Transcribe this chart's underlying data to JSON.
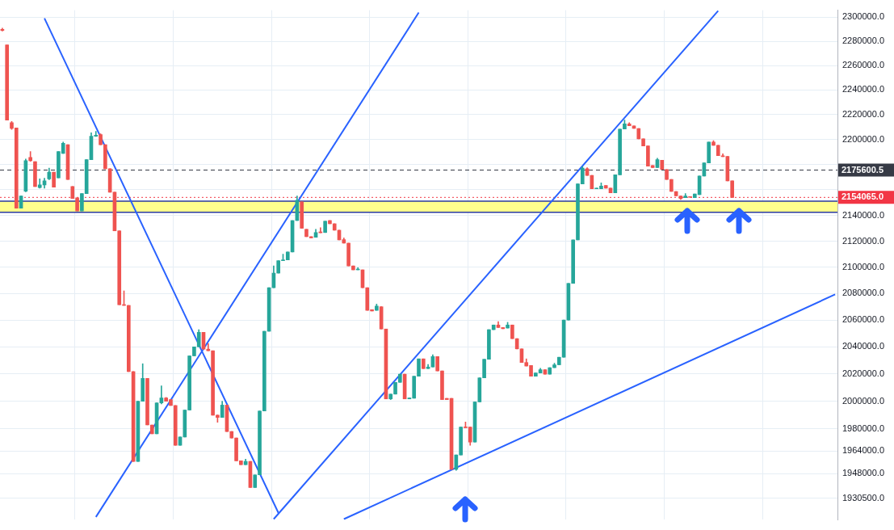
{
  "chart_data": {
    "type": "candlestick",
    "log": "y",
    "grid": true,
    "tick_labels": "y",
    "categories": [
      null,
      null,
      null,
      null,
      null,
      null,
      null,
      null,
      null,
      null,
      null,
      null,
      null,
      null,
      null,
      null,
      null,
      null,
      null,
      null,
      null,
      null,
      null,
      null,
      null,
      null,
      null,
      null,
      null,
      null,
      null,
      null,
      null,
      null,
      null,
      null,
      null,
      null,
      null,
      null,
      null,
      null,
      null,
      null,
      null,
      null,
      null,
      null,
      null,
      null,
      null,
      null,
      null,
      null,
      null,
      null,
      null,
      null,
      null,
      null,
      null,
      null,
      null,
      null,
      null,
      null,
      null,
      null,
      null,
      null,
      null,
      null,
      null,
      null,
      null,
      null,
      null,
      null,
      null,
      null,
      null,
      null,
      null,
      null,
      null,
      null,
      null,
      null,
      null,
      null,
      null,
      null,
      null,
      null,
      null,
      null,
      null,
      null,
      null,
      null,
      null,
      null,
      null,
      null,
      null,
      null,
      null,
      null,
      null,
      null,
      null,
      null,
      null,
      null,
      null,
      null,
      null,
      null,
      null,
      null,
      null,
      null,
      null,
      null,
      null,
      null,
      null,
      null,
      null,
      null,
      null,
      null,
      null,
      null,
      null,
      null,
      null,
      null,
      null,
      null,
      null,
      null,
      null,
      null,
      null,
      null,
      null,
      null,
      null,
      null,
      null,
      null,
      null,
      null,
      null,
      null,
      null,
      null,
      null,
      null,
      null,
      null,
      null,
      null,
      null,
      null,
      null,
      null,
      null,
      null,
      null,
      null,
      null,
      null,
      null,
      null,
      null,
      null,
      null
    ],
    "ylim": [
      1915500,
      2306000
    ],
    "yticks": [
      {
        "value": 2300000,
        "label": "2300000.0"
      },
      {
        "value": 2280000,
        "label": "2280000.0"
      },
      {
        "value": 2260000,
        "label": "2260000.0"
      },
      {
        "value": 2240000,
        "label": "2240000.0"
      },
      {
        "value": 2220000,
        "label": "2220000.0"
      },
      {
        "value": 2200000,
        "label": "2200000.0"
      },
      {
        "value": 2180000,
        "label": null
      },
      {
        "value": 2160000,
        "label": null
      },
      {
        "value": 2140000,
        "label": "2140000.0"
      },
      {
        "value": 2120000,
        "label": "2120000.0"
      },
      {
        "value": 2100000,
        "label": "2100000.0"
      },
      {
        "value": 2080000,
        "label": "2080000.0"
      },
      {
        "value": 2060000,
        "label": "2060000.0"
      },
      {
        "value": 2040000,
        "label": "2040000.0"
      },
      {
        "value": 2020000,
        "label": "2020000.0"
      },
      {
        "value": 2000000,
        "label": "2000000.0"
      },
      {
        "value": 1980000,
        "label": "1980000.0"
      },
      {
        "value": 1964000,
        "label": "1964000.0"
      },
      {
        "value": 1948000,
        "label": "1948000.0"
      },
      {
        "value": 1930500,
        "label": "1930500.0"
      }
    ],
    "ohlc": [
      [
        2290000,
        2291000,
        2288500,
        2289000
      ],
      [
        2277000,
        2277000,
        2215600,
        2215600
      ],
      [
        2213500,
        2214500,
        2208000,
        2208800
      ],
      [
        2209300,
        2209300,
        2145600,
        2145600
      ],
      [
        2145600,
        2155200,
        2145600,
        2155200
      ],
      [
        2159000,
        2184400,
        2158500,
        2183100
      ],
      [
        2185700,
        2190400,
        2182500,
        2183100
      ],
      [
        2182300,
        2182300,
        2162600,
        2162600
      ],
      [
        2161800,
        2168700,
        2161300,
        2163900
      ],
      [
        2163900,
        2169200,
        2161300,
        2167100
      ],
      [
        2168700,
        2177100,
        2168000,
        2173900
      ],
      [
        2173900,
        2173900,
        2162100,
        2162100
      ],
      [
        2169500,
        2190400,
        2169500,
        2190400
      ],
      [
        2188800,
        2197900,
        2188800,
        2196900
      ],
      [
        2195800,
        2195800,
        2168200,
        2168200
      ],
      [
        2162600,
        2162600,
        2153200,
        2153200
      ],
      [
        2153700,
        2153700,
        2143500,
        2143500
      ],
      [
        2143500,
        2157000,
        2143500,
        2157000
      ],
      [
        2157000,
        2183900,
        2157000,
        2183900
      ],
      [
        2183900,
        2205300,
        2183900,
        2202600
      ],
      [
        2202600,
        2206500,
        2202300,
        2203400
      ],
      [
        2203900,
        2204500,
        2195800,
        2195800
      ],
      [
        2195800,
        2195800,
        2176600,
        2176600
      ],
      [
        2176600,
        2176600,
        2158200,
        2158200
      ],
      [
        2158200,
        2158200,
        2128000,
        2128000
      ],
      [
        2128000,
        2128000,
        2071500,
        2071500
      ],
      [
        2071500,
        2082000,
        2071000,
        2071000
      ],
      [
        2071000,
        2071000,
        2021700,
        2021700
      ],
      [
        2021700,
        2021700,
        1956700,
        1956700
      ],
      [
        1956700,
        2000000,
        1956700,
        2000000
      ],
      [
        2000000,
        2027500,
        2000000,
        2016700
      ],
      [
        2016700,
        2016700,
        1982800,
        1982800
      ],
      [
        1982800,
        1982800,
        1976500,
        1976500
      ],
      [
        1976500,
        1998800,
        1976500,
        1998800
      ],
      [
        1998800,
        2011200,
        1998000,
        2002400
      ],
      [
        2002400,
        2002800,
        2000000,
        2000000
      ],
      [
        2001200,
        2001200,
        1996900,
        1996900
      ],
      [
        1996900,
        1996900,
        1968200,
        1968200
      ],
      [
        1968200,
        1974100,
        1968200,
        1974100
      ],
      [
        1974100,
        1993600,
        1974100,
        1993600
      ],
      [
        1993600,
        2033300,
        1993600,
        2033300
      ],
      [
        2033300,
        2040000,
        2033300,
        2040000
      ],
      [
        2040000,
        2052800,
        2040000,
        2050800
      ],
      [
        2050800,
        2050800,
        2038300,
        2038300
      ],
      [
        2038300,
        2042400,
        2037100,
        2037100
      ],
      [
        2037100,
        2037100,
        1989900,
        1989900
      ],
      [
        1989900,
        1990000,
        1984700,
        1988200
      ],
      [
        1988200,
        2000000,
        1988200,
        1997200
      ],
      [
        1997200,
        1997200,
        1978100,
        1978100
      ],
      [
        1978100,
        1978100,
        1973400,
        1973400
      ],
      [
        1973400,
        1973400,
        1957100,
        1957100
      ],
      [
        1957100,
        1957100,
        1954400,
        1954400
      ],
      [
        1954400,
        1958300,
        1954400,
        1956700
      ],
      [
        1956700,
        1956700,
        1938200,
        1938200
      ],
      [
        1938200,
        1947100,
        1938200,
        1947100
      ],
      [
        1947100,
        1992900,
        1947100,
        1992900
      ],
      [
        1992900,
        2051600,
        1992900,
        2051600
      ],
      [
        2051600,
        2084400,
        2051600,
        2084400
      ],
      [
        2084400,
        2101000,
        2084400,
        2095500
      ],
      [
        2095500,
        2105000,
        2095500,
        2105000
      ],
      [
        2105000,
        2110000,
        2105000,
        2105600
      ],
      [
        2105600,
        2111700,
        2105600,
        2111700
      ],
      [
        2111700,
        2136000,
        2111700,
        2136000
      ],
      [
        2136000,
        2155200,
        2136000,
        2151900
      ],
      [
        2150600,
        2150600,
        2130000,
        2130000
      ],
      [
        2129200,
        2129200,
        2123500,
        2123500
      ],
      [
        2123500,
        2123500,
        2122500,
        2122500
      ],
      [
        2123000,
        2129200,
        2123000,
        2126700
      ],
      [
        2127200,
        2130500,
        2126500,
        2126500
      ],
      [
        2126700,
        2135500,
        2126700,
        2135500
      ],
      [
        2136000,
        2136000,
        2133500,
        2133500
      ],
      [
        2133500,
        2133500,
        2128500,
        2128500
      ],
      [
        2128500,
        2128500,
        2121000,
        2121000
      ],
      [
        2121200,
        2122500,
        2118500,
        2118500
      ],
      [
        2118500,
        2118500,
        2101000,
        2101000
      ],
      [
        2101000,
        2101000,
        2098000,
        2098000
      ],
      [
        2098000,
        2099700,
        2098000,
        2098500
      ],
      [
        2098000,
        2098000,
        2084400,
        2084400
      ],
      [
        2084400,
        2084400,
        2067300,
        2067300
      ],
      [
        2067800,
        2067800,
        2066800,
        2066800
      ],
      [
        2067300,
        2072000,
        2067300,
        2070500
      ],
      [
        2070000,
        2070000,
        2053300,
        2053300
      ],
      [
        2053300,
        2053300,
        2001700,
        2001700
      ],
      [
        2001700,
        2005200,
        2001200,
        2005200
      ],
      [
        2005200,
        2013800,
        2005200,
        2013800
      ],
      [
        2013800,
        2019800,
        2013800,
        2019800
      ],
      [
        2019800,
        2019800,
        2001700,
        2001700
      ],
      [
        2001700,
        2002400,
        2001700,
        2002400
      ],
      [
        2002200,
        2018300,
        2002200,
        2018300
      ],
      [
        2018300,
        2031100,
        2018300,
        2031100
      ],
      [
        2031100,
        2031100,
        2023900,
        2023900
      ],
      [
        2023900,
        2027000,
        2023900,
        2025100
      ],
      [
        2025100,
        2034200,
        2025100,
        2032800
      ],
      [
        2032800,
        2032800,
        2022200,
        2022200
      ],
      [
        2022200,
        2022200,
        2001200,
        2001200
      ],
      [
        2002100,
        2002100,
        2001200,
        2001200
      ],
      [
        2002100,
        2002100,
        1951000,
        1951000
      ],
      [
        1951000,
        1961300,
        1950300,
        1961300
      ],
      [
        1961300,
        1981300,
        1961300,
        1981300
      ],
      [
        1981300,
        1985000,
        1980800,
        1980800
      ],
      [
        1981300,
        1981300,
        1968200,
        1970500
      ],
      [
        1970500,
        1999500,
        1970500,
        1999500
      ],
      [
        1999500,
        2017100,
        1999500,
        2017100
      ],
      [
        2017100,
        2030800,
        2017100,
        2030800
      ],
      [
        2030800,
        2052800,
        2030800,
        2052800
      ],
      [
        2052800,
        2056300,
        2052800,
        2056300
      ],
      [
        2056300,
        2058800,
        2054400,
        2054400
      ],
      [
        2054400,
        2054400,
        2053500,
        2053500
      ],
      [
        2054000,
        2058300,
        2054000,
        2056300
      ],
      [
        2056300,
        2056300,
        2046100,
        2046100
      ],
      [
        2046100,
        2046100,
        2038500,
        2038500
      ],
      [
        2038500,
        2038500,
        2028400,
        2028400
      ],
      [
        2028400,
        2031100,
        2025800,
        2025800
      ],
      [
        2026200,
        2026200,
        2018300,
        2018300
      ],
      [
        2018300,
        2020700,
        2018300,
        2020700
      ],
      [
        2020700,
        2024100,
        2020700,
        2023100
      ],
      [
        2023100,
        2023100,
        2019800,
        2019800
      ],
      [
        2019800,
        2024600,
        2019800,
        2024600
      ],
      [
        2024600,
        2027900,
        2024600,
        2026700
      ],
      [
        2026700,
        2032300,
        2026700,
        2032300
      ],
      [
        2032300,
        2060000,
        2032300,
        2060000
      ],
      [
        2060000,
        2087700,
        2060000,
        2087700
      ],
      [
        2087700,
        2121000,
        2087700,
        2121000
      ],
      [
        2121000,
        2164700,
        2121000,
        2164700
      ],
      [
        2164700,
        2178500,
        2164700,
        2177100
      ],
      [
        2176600,
        2177500,
        2171400,
        2171400
      ],
      [
        2171400,
        2171400,
        2160800,
        2160800
      ],
      [
        2160800,
        2161300,
        2160800,
        2161300
      ],
      [
        2160800,
        2165500,
        2160800,
        2162900
      ],
      [
        2163400,
        2163400,
        2161300,
        2161300
      ],
      [
        2161300,
        2161300,
        2157700,
        2157700
      ],
      [
        2157700,
        2171800,
        2157700,
        2171800
      ],
      [
        2171800,
        2208300,
        2171800,
        2208300
      ],
      [
        2208300,
        2215600,
        2208300,
        2212500
      ],
      [
        2212500,
        2213500,
        2210900,
        2210900
      ],
      [
        2210900,
        2210900,
        2208800,
        2208800
      ],
      [
        2208800,
        2208800,
        2200500,
        2200500
      ],
      [
        2200500,
        2200500,
        2194800,
        2194800
      ],
      [
        2194800,
        2194800,
        2178700,
        2178700
      ],
      [
        2179200,
        2179200,
        2177600,
        2177600
      ],
      [
        2177600,
        2185000,
        2177600,
        2183900
      ],
      [
        2183400,
        2183400,
        2176100,
        2176100
      ],
      [
        2176100,
        2176100,
        2168200,
        2168200
      ],
      [
        2168200,
        2168200,
        2158700,
        2158700
      ],
      [
        2158700,
        2158700,
        2155200,
        2155200
      ],
      [
        2155200,
        2155200,
        2152500,
        2153200
      ],
      [
        2153900,
        2157000,
        2153900,
        2155200
      ],
      [
        2154400,
        2154400,
        2154100,
        2154100
      ],
      [
        2153900,
        2156700,
        2153900,
        2156700
      ],
      [
        2156200,
        2170900,
        2156200,
        2170900
      ],
      [
        2170900,
        2181300,
        2170900,
        2181300
      ],
      [
        2181300,
        2197900,
        2181300,
        2197900
      ],
      [
        2197900,
        2199000,
        2195300,
        2195300
      ],
      [
        2195300,
        2195300,
        2187000,
        2187000
      ],
      [
        2187000,
        2188600,
        2186200,
        2186200
      ],
      [
        2186400,
        2186400,
        2167100,
        2167100
      ],
      [
        2167100,
        2167100,
        2154065,
        2154065
      ],
      null,
      null,
      null,
      null,
      null,
      null,
      null,
      null,
      null,
      null,
      null,
      null,
      null,
      null,
      null,
      null,
      null,
      null,
      null,
      null,
      null,
      null
    ],
    "colors": [
      "#ef5350",
      "#ef5350",
      "#ef5350",
      "#ef5350",
      "#26a69a",
      "#26a69a",
      "#ef5350",
      "#ef5350",
      "#26a69a",
      "#26a69a",
      "#26a69a",
      "#ef5350",
      "#26a69a",
      "#26a69a",
      "#ef5350",
      "#ef5350",
      "#ef5350",
      "#26a69a",
      "#26a69a",
      "#26a69a",
      "#26a69a",
      "#ef5350",
      "#ef5350",
      "#ef5350",
      "#ef5350",
      "#ef5350",
      "#ef5350",
      "#ef5350",
      "#ef5350",
      "#26a69a",
      "#26a69a",
      "#ef5350",
      "#ef5350",
      "#26a69a",
      "#26a69a",
      "#ef5350",
      "#ef5350",
      "#ef5350",
      "#26a69a",
      "#26a69a",
      "#26a69a",
      "#26a69a",
      "#26a69a",
      "#ef5350",
      "#ef5350",
      "#ef5350",
      "#ef5350",
      "#26a69a",
      "#ef5350",
      "#ef5350",
      "#ef5350",
      "#ef5350",
      "#26a69a",
      "#ef5350",
      "#26a69a",
      "#26a69a",
      "#26a69a",
      "#26a69a",
      "#26a69a",
      "#26a69a",
      "#26a69a",
      "#26a69a",
      "#26a69a",
      "#26a69a",
      "#ef5350",
      "#ef5350",
      "#ef5350",
      "#26a69a",
      "#ef5350",
      "#26a69a",
      "#ef5350",
      "#ef5350",
      "#ef5350",
      "#ef5350",
      "#ef5350",
      "#ef5350",
      "#26a69a",
      "#ef5350",
      "#ef5350",
      "#ef5350",
      "#26a69a",
      "#ef5350",
      "#ef5350",
      "#26a69a",
      "#26a69a",
      "#26a69a",
      "#ef5350",
      "#26a69a",
      "#26a69a",
      "#26a69a",
      "#ef5350",
      "#26a69a",
      "#26a69a",
      "#ef5350",
      "#ef5350",
      "#ef5350",
      "#ef5350",
      "#26a69a",
      "#26a69a",
      "#ef5350",
      "#ef5350",
      "#26a69a",
      "#26a69a",
      "#26a69a",
      "#26a69a",
      "#26a69a",
      "#ef5350",
      "#ef5350",
      "#26a69a",
      "#ef5350",
      "#ef5350",
      "#ef5350",
      "#ef5350",
      "#ef5350",
      "#26a69a",
      "#26a69a",
      "#ef5350",
      "#26a69a",
      "#26a69a",
      "#26a69a",
      "#26a69a",
      "#26a69a",
      "#26a69a",
      "#26a69a",
      "#26a69a",
      "#ef5350",
      "#ef5350",
      "#26a69a",
      "#26a69a",
      "#ef5350",
      "#ef5350",
      "#26a69a",
      "#26a69a",
      "#26a69a",
      "#ef5350",
      "#ef5350",
      "#ef5350",
      "#ef5350",
      "#ef5350",
      "#ef5350",
      "#26a69a",
      "#ef5350",
      "#ef5350",
      "#ef5350",
      "#ef5350",
      "#ef5350",
      "#26a69a",
      "#ef5350",
      "#26a69a",
      "#26a69a",
      "#26a69a",
      "#26a69a",
      "#ef5350",
      "#ef5350",
      "#ef5350",
      "#ef5350",
      "#ef5350",
      null,
      null,
      null,
      null,
      null,
      null,
      null,
      null,
      null,
      null,
      null,
      null,
      null,
      null,
      null,
      null,
      null,
      null,
      null,
      null,
      null,
      null
    ],
    "series": [
      {
        "type": "line",
        "color": "#2962ff",
        "values": [
          null,
          null,
          null,
          null,
          null,
          null,
          null,
          null,
          null,
          2299200,
          null,
          null,
          null,
          null,
          null,
          null,
          null,
          null,
          null,
          null,
          null,
          null,
          null,
          null,
          null,
          null,
          null,
          null,
          null,
          null,
          null,
          null,
          null,
          null,
          null,
          null,
          null,
          null,
          null,
          null,
          null,
          null,
          null,
          null,
          null,
          null,
          null,
          null,
          null,
          null,
          null,
          null,
          null,
          null,
          null,
          null,
          null,
          null,
          null,
          1920400,
          null,
          null,
          null,
          null,
          null,
          null,
          null,
          null,
          null,
          null,
          null,
          null,
          null,
          null,
          null,
          null,
          null,
          null,
          null,
          null,
          null,
          null,
          null,
          null,
          null,
          null,
          null,
          null,
          null,
          null,
          null,
          null,
          null,
          null,
          null,
          null,
          null,
          null,
          null,
          null,
          null,
          null,
          null,
          null,
          null,
          null,
          null,
          null,
          null,
          null,
          null,
          null,
          null,
          null,
          null,
          null,
          null,
          null,
          null,
          null,
          null,
          null,
          null,
          null,
          null,
          null,
          null,
          null,
          null,
          null,
          null,
          null,
          null,
          null,
          null,
          null,
          null,
          null,
          null,
          null,
          null,
          null,
          null,
          null,
          null,
          null,
          null,
          null,
          null,
          null,
          null,
          null,
          null,
          null,
          null,
          null,
          null,
          null,
          null,
          null,
          null,
          null,
          null,
          null,
          null,
          null,
          null,
          null,
          null,
          null,
          null,
          null,
          null,
          null,
          null,
          null,
          null,
          null,
          null
        ]
      },
      {
        "type": "line",
        "color": "#2962ff",
        "values": [
          null,
          null,
          null,
          null,
          null,
          null,
          null,
          null,
          null,
          null,
          null,
          null,
          null,
          null,
          null,
          null,
          null,
          null,
          null,
          null,
          1917500,
          null,
          null,
          null,
          null,
          null,
          null,
          null,
          null,
          null,
          null,
          null,
          null,
          null,
          null,
          null,
          null,
          null,
          null,
          null,
          null,
          null,
          null,
          null,
          null,
          null,
          null,
          null,
          null,
          null,
          null,
          null,
          null,
          null,
          null,
          null,
          null,
          null,
          null,
          null,
          null,
          null,
          null,
          null,
          null,
          null,
          null,
          null,
          null,
          null,
          null,
          null,
          null,
          null,
          null,
          null,
          null,
          null,
          null,
          null,
          null,
          null,
          null,
          null,
          null,
          null,
          null,
          null,
          null,
          2304000,
          null,
          null,
          null,
          null,
          null,
          null,
          null,
          null,
          null,
          null,
          null,
          null,
          null,
          null,
          null,
          null,
          null,
          null,
          null,
          null,
          null,
          null,
          null,
          null,
          null,
          null,
          null,
          null,
          null,
          null,
          null,
          null,
          null,
          null,
          null,
          null,
          null,
          null,
          null,
          null,
          null,
          null,
          null,
          null,
          null,
          null,
          null,
          null,
          null,
          null,
          null,
          null,
          null,
          null,
          null,
          null,
          null,
          null,
          null,
          null,
          null,
          null,
          null,
          null,
          null,
          null,
          null,
          null,
          null,
          null,
          null,
          null,
          null,
          null,
          null,
          null,
          null,
          null,
          null,
          null,
          null,
          null,
          null,
          null,
          null,
          null,
          null,
          null,
          null
        ]
      },
      {
        "type": "line",
        "color": "#2962ff",
        "values": [
          null,
          null,
          null,
          null,
          null,
          null,
          null,
          null,
          null,
          null,
          null,
          null,
          null,
          null,
          null,
          null,
          null,
          null,
          null,
          null,
          null,
          null,
          null,
          null,
          null,
          null,
          null,
          null,
          null,
          null,
          null,
          null,
          null,
          null,
          null,
          null,
          null,
          null,
          null,
          null,
          null,
          null,
          null,
          null,
          null,
          null,
          null,
          null,
          null,
          null,
          null,
          null,
          null,
          null,
          null,
          null,
          null,
          null,
          1916000,
          null,
          null,
          null,
          null,
          null,
          null,
          null,
          null,
          null,
          null,
          null,
          null,
          null,
          null,
          null,
          null,
          null,
          null,
          null,
          null,
          null,
          null,
          null,
          null,
          null,
          null,
          null,
          null,
          null,
          null,
          null,
          null,
          null,
          null,
          null,
          null,
          null,
          null,
          null,
          null,
          null,
          null,
          null,
          null,
          null,
          null,
          null,
          null,
          null,
          null,
          null,
          null,
          null,
          null,
          null,
          null,
          null,
          null,
          null,
          null,
          null,
          null,
          null,
          null,
          null,
          null,
          null,
          null,
          null,
          null,
          null,
          null,
          null,
          null,
          null,
          null,
          null,
          null,
          null,
          null,
          null,
          null,
          null,
          null,
          null,
          null,
          null,
          null,
          null,
          null,
          null,
          null,
          null,
          null,
          2305500,
          null,
          null,
          null,
          null,
          null,
          null,
          null,
          null,
          null,
          null,
          null,
          null,
          null,
          null,
          null,
          null,
          null,
          null,
          null,
          null,
          null,
          null,
          null,
          null,
          null
        ]
      },
      {
        "type": "line",
        "color": "#2962ff",
        "values": [
          null,
          null,
          null,
          null,
          null,
          null,
          null,
          null,
          null,
          null,
          null,
          null,
          null,
          null,
          null,
          null,
          null,
          null,
          null,
          null,
          null,
          null,
          null,
          null,
          null,
          null,
          null,
          null,
          null,
          null,
          null,
          null,
          null,
          null,
          null,
          null,
          null,
          null,
          null,
          null,
          null,
          null,
          null,
          null,
          null,
          null,
          null,
          null,
          null,
          null,
          null,
          null,
          null,
          null,
          null,
          null,
          null,
          null,
          null,
          null,
          null,
          null,
          null,
          null,
          null,
          null,
          null,
          null,
          null,
          null,
          null,
          null,
          null,
          1916000,
          null,
          null,
          null,
          null,
          null,
          null,
          null,
          null,
          null,
          null,
          null,
          null,
          null,
          null,
          null,
          null,
          null,
          null,
          null,
          null,
          null,
          null,
          null,
          null,
          null,
          null,
          null,
          null,
          null,
          null,
          null,
          null,
          null,
          null,
          null,
          null,
          null,
          null,
          null,
          null,
          null,
          null,
          null,
          null,
          null,
          null,
          null,
          null,
          null,
          null,
          null,
          null,
          null,
          null,
          null,
          null,
          null,
          null,
          null,
          null,
          null,
          null,
          null,
          null,
          null,
          null,
          null,
          null,
          null,
          null,
          null,
          null,
          null,
          null,
          null,
          null,
          null,
          null,
          null,
          null,
          null,
          null,
          null,
          null,
          null,
          null,
          null,
          null,
          null,
          null,
          null,
          null,
          null,
          null,
          null,
          null,
          null,
          null,
          null,
          null,
          null,
          null,
          null,
          null,
          2079300
        ]
      }
    ],
    "ref_lines": [
      {
        "axis": "y",
        "value": 2175600.5,
        "label": "2175600.5",
        "color": "#363a45",
        "line_style": "dashed"
      },
      {
        "axis": "y",
        "value": 2154065,
        "label": "2154065.0",
        "color": "#f23645",
        "line_style": "dotted"
      },
      {
        "axis": "y",
        "value": 2151100,
        "color": "#2a3a9e",
        "line_style": "solid"
      },
      {
        "axis": "y",
        "value": 2142500,
        "color": "#2a3a9e",
        "line_style": "solid"
      }
    ],
    "bands": [
      {
        "axis": "y",
        "from": 2142500,
        "to": 2151100,
        "color": "#ffff8d"
      }
    ]
  }
}
